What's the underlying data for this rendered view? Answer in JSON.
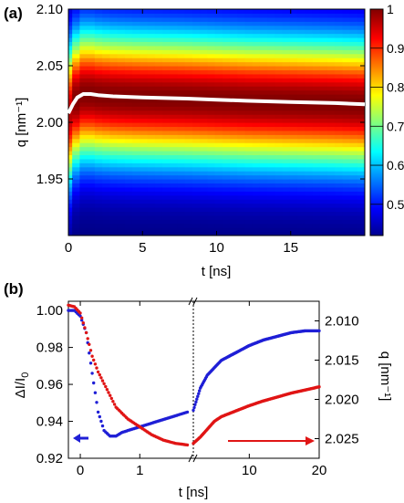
{
  "chart_data": [
    {
      "panel": "(a)",
      "type": "heatmap",
      "xlabel": "t [ns]",
      "ylabel": "q [nm⁻¹]",
      "xlim": [
        0,
        20
      ],
      "ylim": [
        1.9,
        2.1
      ],
      "x_ticks": [
        "0",
        "5",
        "10",
        "15"
      ],
      "y_ticks": [
        "1.95",
        "2.00",
        "2.05",
        "2.10"
      ],
      "colorbar": {
        "range": [
          0.42,
          1.0
        ],
        "ticks": [
          "0.5",
          "0.6",
          "0.7",
          "0.8",
          "0.9",
          "1"
        ],
        "colormap": "jet"
      },
      "peak_line": {
        "color": "#ffffff",
        "x": [
          0,
          0.3,
          0.6,
          1.0,
          1.5,
          2,
          3,
          5,
          8,
          10,
          12,
          15,
          18,
          20
        ],
        "y": [
          2.008,
          2.016,
          2.022,
          2.025,
          2.025,
          2.024,
          2.023,
          2.022,
          2.021,
          2.02,
          2.019,
          2.018,
          2.017,
          2.016
        ]
      }
    },
    {
      "panel": "(b)",
      "type": "line",
      "xlabel": "t [ns]",
      "ylabel_left": "ΔI/I",
      "ylabel_left_sub": "0",
      "ylabel_right": "q [nm⁻¹]",
      "x_ticks_left": [
        "0",
        "1"
      ],
      "x_ticks_right": [
        "10",
        "20"
      ],
      "xlim_left": [
        -0.2,
        1.9
      ],
      "xlim_right": [
        2,
        20
      ],
      "ylim_left": [
        0.92,
        1.005
      ],
      "y_ticks_left": [
        "0.92",
        "0.94",
        "0.96",
        "0.98",
        "1.00"
      ],
      "ylim_right": [
        2.0075,
        2.0275
      ],
      "y_ticks_right": [
        "2.010",
        "2.015",
        "2.020",
        "2.025"
      ],
      "y_right_inverted": true,
      "series": [
        {
          "color": "#1f1fd6",
          "axis": "left",
          "x_early": [
            -0.2,
            -0.1,
            0,
            0.1,
            0.2,
            0.3,
            0.4,
            0.5,
            0.6,
            0.7,
            0.8,
            1.0,
            1.2,
            1.4,
            1.6,
            1.8
          ],
          "y_early": [
            1.0,
            1.0,
            0.997,
            0.988,
            0.966,
            0.945,
            0.935,
            0.932,
            0.932,
            0.934,
            0.935,
            0.937,
            0.939,
            0.941,
            0.943,
            0.945
          ],
          "x_late": [
            2,
            3,
            4,
            5,
            6,
            8,
            10,
            12,
            14,
            16,
            18,
            20
          ],
          "y_late": [
            0.946,
            0.958,
            0.965,
            0.969,
            0.973,
            0.977,
            0.981,
            0.984,
            0.986,
            0.988,
            0.989,
            0.989
          ]
        },
        {
          "color": "#e01515",
          "axis": "right",
          "x_early": [
            -0.2,
            -0.1,
            0,
            0.1,
            0.2,
            0.3,
            0.4,
            0.5,
            0.6,
            0.8,
            1.0,
            1.2,
            1.4,
            1.6,
            1.8
          ],
          "y_early": [
            2.008,
            2.0082,
            2.009,
            2.0115,
            2.0145,
            2.0165,
            2.018,
            2.0195,
            2.021,
            2.0225,
            2.0235,
            2.0245,
            2.0252,
            2.0256,
            2.0258
          ],
          "x_late": [
            2,
            3,
            4,
            5,
            6,
            8,
            10,
            12,
            14,
            16,
            18,
            20
          ],
          "y_late": [
            2.0256,
            2.0248,
            2.0238,
            2.0228,
            2.0222,
            2.0215,
            2.0208,
            2.0202,
            2.0197,
            2.0192,
            2.0188,
            2.0184
          ]
        }
      ],
      "annotations": [
        {
          "color": "#1f1fd6",
          "direction": "left"
        },
        {
          "color": "#e01515",
          "direction": "right"
        }
      ]
    }
  ]
}
